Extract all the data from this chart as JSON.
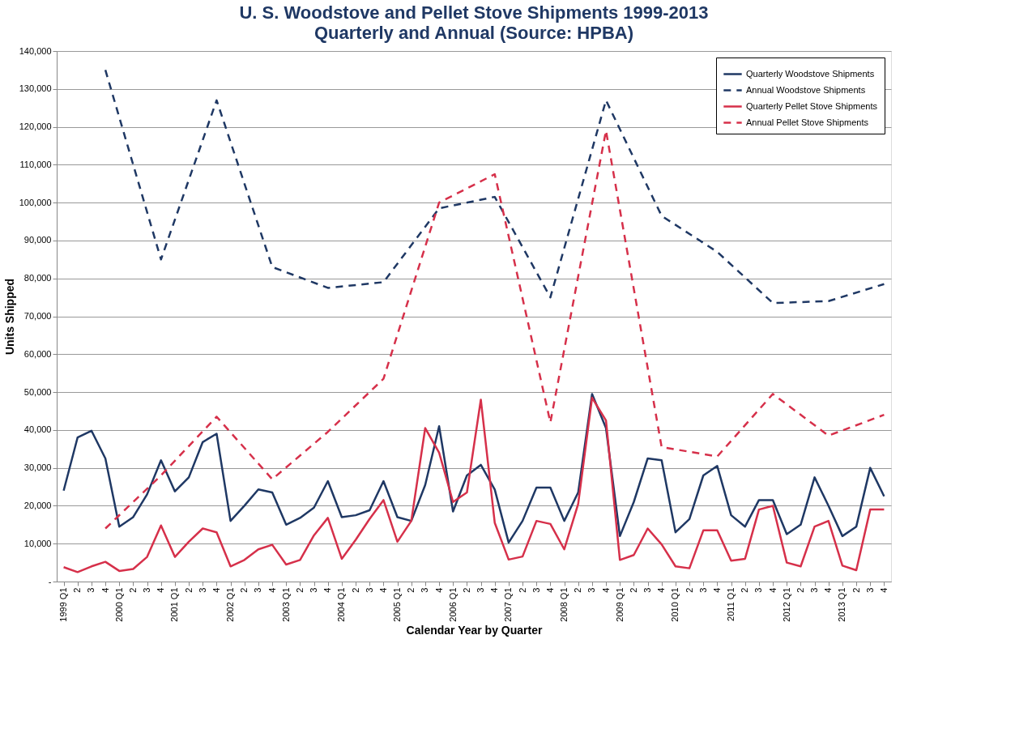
{
  "chart_data": {
    "type": "line",
    "title": "U. S. Woodstove and Pellet Stove Shipments 1999-2013",
    "subtitle": "Quarterly and Annual (Source:  HPBA)",
    "xlabel": "Calendar Year by Quarter",
    "ylabel": "Units Shipped",
    "categories": [
      "1999 Q1",
      "2",
      "3",
      "4",
      "2000 Q1",
      "2",
      "3",
      "4",
      "2001 Q1",
      "2",
      "3",
      "4",
      "2002 Q1",
      "2",
      "3",
      "4",
      "2003 Q1",
      "2",
      "3",
      "4",
      "2004 Q1",
      "2",
      "3",
      "4",
      "2005 Q1",
      "2",
      "3",
      "4",
      "2006 Q1",
      "2",
      "3",
      "4",
      "2007 Q1",
      "2",
      "3",
      "4",
      "2008 Q1",
      "2",
      "3",
      "4",
      "2009 Q1",
      "2",
      "3",
      "4",
      "2010 Q1",
      "2",
      "3",
      "4",
      "2011 Q1",
      "2",
      "3",
      "4",
      "2012 Q1",
      "2",
      "3",
      "4",
      "2013 Q1",
      "2",
      "3",
      "4"
    ],
    "series": [
      {
        "name": "Quarterly Woodstove Shipments",
        "color": "#1f3864",
        "line_style": "solid",
        "values": [
          24000,
          38000,
          39800,
          32500,
          14500,
          17000,
          23000,
          32000,
          23800,
          27500,
          36800,
          39000,
          16000,
          20000,
          24300,
          23500,
          15000,
          16800,
          19500,
          26500,
          17000,
          17500,
          18800,
          26500,
          17000,
          16000,
          25500,
          41000,
          18500,
          28000,
          30800,
          24300,
          10300,
          16000,
          24800,
          24800,
          16000,
          23500,
          49500,
          40500,
          12000,
          21000,
          32500,
          32000,
          13000,
          16500,
          28000,
          30500,
          17500,
          14500,
          21500,
          21500,
          12500,
          15000,
          27500,
          20000,
          12000,
          14500,
          30000,
          22500
        ]
      },
      {
        "name": "Annual Woodstove Shipments",
        "color": "#1f3864",
        "line_style": "dashed",
        "values": [
          null,
          null,
          null,
          135000,
          null,
          null,
          null,
          85000,
          null,
          null,
          null,
          127000,
          null,
          null,
          null,
          83000,
          null,
          null,
          null,
          77500,
          null,
          null,
          null,
          79000,
          null,
          null,
          null,
          98500,
          null,
          null,
          null,
          101500,
          null,
          null,
          null,
          75000,
          null,
          null,
          null,
          127000,
          null,
          null,
          null,
          96500,
          null,
          null,
          null,
          87000,
          null,
          null,
          null,
          73500,
          null,
          null,
          null,
          74000,
          null,
          null,
          null,
          78500
        ]
      },
      {
        "name": "Quarterly Pellet Stove Shipments",
        "color": "#d6304a",
        "line_style": "solid",
        "values": [
          3800,
          2500,
          4000,
          5200,
          2800,
          3300,
          6500,
          14800,
          6500,
          10500,
          14000,
          13000,
          4000,
          5700,
          8500,
          9700,
          4500,
          5700,
          12200,
          16800,
          6000,
          11000,
          16500,
          21500,
          10500,
          16000,
          40500,
          34000,
          21000,
          23500,
          48000,
          15500,
          5800,
          6600,
          16000,
          15200,
          8500,
          20500,
          48500,
          42500,
          5700,
          7000,
          14000,
          9800,
          4000,
          3500,
          13500,
          13500,
          5500,
          6000,
          19000,
          20000,
          5000,
          4000,
          14500,
          16000,
          4200,
          3000,
          19000,
          19000
        ]
      },
      {
        "name": "Annual Pellet Stove Shipments",
        "color": "#d6304a",
        "line_style": "dashed",
        "values": [
          null,
          null,
          null,
          14000,
          null,
          null,
          null,
          28000,
          null,
          null,
          null,
          43500,
          null,
          null,
          null,
          27000,
          null,
          null,
          null,
          39500,
          null,
          null,
          null,
          53500,
          null,
          null,
          null,
          100000,
          null,
          null,
          null,
          107500,
          null,
          null,
          null,
          42000,
          null,
          null,
          null,
          119000,
          null,
          null,
          null,
          35500,
          null,
          null,
          null,
          33000,
          null,
          null,
          null,
          49500,
          null,
          null,
          null,
          38500,
          null,
          null,
          null,
          44000
        ]
      }
    ],
    "ylim": [
      0,
      140000
    ],
    "yticks": [
      {
        "value": 0,
        "label": "-"
      },
      {
        "value": 10000,
        "label": "10,000"
      },
      {
        "value": 20000,
        "label": "20,000"
      },
      {
        "value": 30000,
        "label": "30,000"
      },
      {
        "value": 40000,
        "label": "40,000"
      },
      {
        "value": 50000,
        "label": "50,000"
      },
      {
        "value": 60000,
        "label": "60,000"
      },
      {
        "value": 70000,
        "label": "70,000"
      },
      {
        "value": 80000,
        "label": "80,000"
      },
      {
        "value": 90000,
        "label": "90,000"
      },
      {
        "value": 100000,
        "label": "100,000"
      },
      {
        "value": 110000,
        "label": "110,000"
      },
      {
        "value": 120000,
        "label": "120,000"
      },
      {
        "value": 130000,
        "label": "130,000"
      },
      {
        "value": 140000,
        "label": "140,000"
      }
    ],
    "grid": "y",
    "legend": "top right"
  }
}
